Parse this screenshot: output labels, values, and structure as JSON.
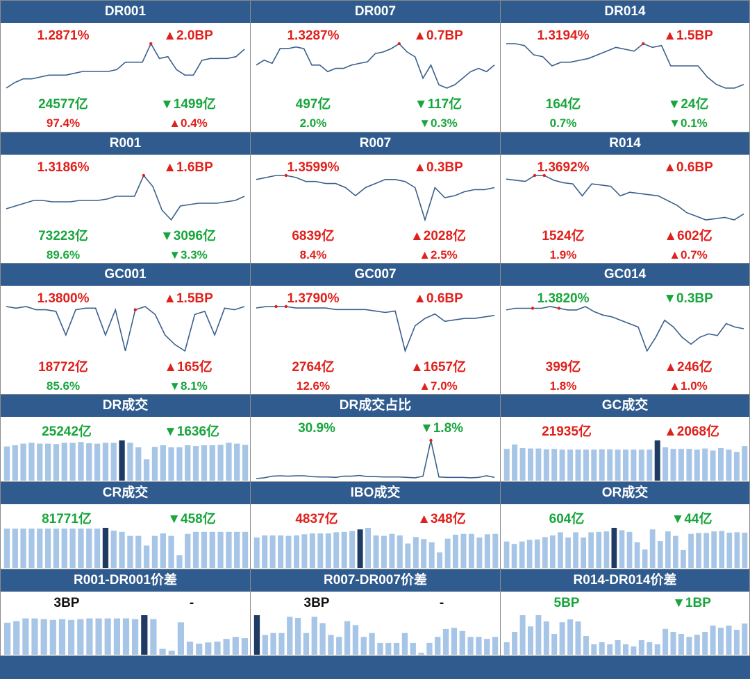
{
  "panels": [
    {
      "title": "DR001",
      "rate": "1.2871%",
      "rate_dir": "up",
      "rate_chg": "▲2.0BP",
      "vol": "24577亿",
      "vol_dir": "down",
      "vol_chg": "▼1499亿",
      "share": "97.4%",
      "share_dir": "up",
      "share_chg": "▲0.4%"
    },
    {
      "title": "DR007",
      "rate": "1.3287%",
      "rate_dir": "up",
      "rate_chg": "▲0.7BP",
      "vol": "497亿",
      "vol_dir": "down",
      "vol_chg": "▼117亿",
      "share": "2.0%",
      "share_dir": "down",
      "share_chg": "▼0.3%"
    },
    {
      "title": "DR014",
      "rate": "1.3194%",
      "rate_dir": "up",
      "rate_chg": "▲1.5BP",
      "vol": "164亿",
      "vol_dir": "down",
      "vol_chg": "▼24亿",
      "share": "0.7%",
      "share_dir": "down",
      "share_chg": "▼0.1%"
    },
    {
      "title": "R001",
      "rate": "1.3186%",
      "rate_dir": "up",
      "rate_chg": "▲1.6BP",
      "vol": "73223亿",
      "vol_dir": "down",
      "vol_chg": "▼3096亿",
      "share": "89.6%",
      "share_dir": "down",
      "share_chg": "▼3.3%"
    },
    {
      "title": "R007",
      "rate": "1.3599%",
      "rate_dir": "up",
      "rate_chg": "▲0.3BP",
      "vol": "6839亿",
      "vol_dir": "up",
      "vol_chg": "▲2028亿",
      "share": "8.4%",
      "share_dir": "up",
      "share_chg": "▲2.5%"
    },
    {
      "title": "R014",
      "rate": "1.3692%",
      "rate_dir": "up",
      "rate_chg": "▲0.6BP",
      "vol": "1524亿",
      "vol_dir": "up",
      "vol_chg": "▲602亿",
      "share": "1.9%",
      "share_dir": "up",
      "share_chg": "▲0.7%"
    },
    {
      "title": "GC001",
      "rate": "1.3800%",
      "rate_dir": "up",
      "rate_chg": "▲1.5BP",
      "vol": "18772亿",
      "vol_dir": "up",
      "vol_chg": "▲165亿",
      "share": "85.6%",
      "share_dir": "down",
      "share_chg": "▼8.1%"
    },
    {
      "title": "GC007",
      "rate": "1.3790%",
      "rate_dir": "up",
      "rate_chg": "▲0.6BP",
      "vol": "2764亿",
      "vol_dir": "up",
      "vol_chg": "▲1657亿",
      "share": "12.6%",
      "share_dir": "up",
      "share_chg": "▲7.0%"
    },
    {
      "title": "GC014",
      "rate": "1.3820%",
      "rate_dir": "down",
      "rate_chg": "▼0.3BP",
      "vol": "399亿",
      "vol_dir": "up",
      "vol_chg": "▲246亿",
      "share": "1.8%",
      "share_dir": "up",
      "share_chg": "▲1.0%"
    }
  ],
  "small_panels": [
    {
      "title": "DR成交",
      "value": "25242亿",
      "value_dir": "down",
      "chg": "▼1636亿",
      "chg_dir": "down"
    },
    {
      "title": "DR成交占比",
      "value": "30.9%",
      "value_dir": "down",
      "chg": "▼1.8%",
      "chg_dir": "down"
    },
    {
      "title": "GC成交",
      "value": "21935亿",
      "value_dir": "up",
      "chg": "▲2068亿",
      "chg_dir": "up"
    },
    {
      "title": "CR成交",
      "value": "81771亿",
      "value_dir": "down",
      "chg": "▼458亿",
      "chg_dir": "down"
    },
    {
      "title": "IBO成交",
      "value": "4837亿",
      "value_dir": "up",
      "chg": "▲348亿",
      "chg_dir": "up"
    },
    {
      "title": "OR成交",
      "value": "604亿",
      "value_dir": "down",
      "chg": "▼44亿",
      "chg_dir": "down"
    },
    {
      "title": "R001-DR001价差",
      "value": "3BP",
      "value_dir": "neutral",
      "chg": "-",
      "chg_dir": "neutral"
    },
    {
      "title": "R007-DR007价差",
      "value": "3BP",
      "value_dir": "neutral",
      "chg": "-",
      "chg_dir": "neutral"
    },
    {
      "title": "R014-DR014价差",
      "value": "5BP",
      "value_dir": "down",
      "chg": "▼1BP",
      "chg_dir": "down"
    }
  ],
  "colors": {
    "header": "#2f5b8f",
    "line": "#3a5f8c",
    "bar": "#a7c5e6",
    "bar_highlight": "#1f3b63",
    "up": "#e0201b",
    "down": "#17a63b",
    "marker": "#e0201b"
  },
  "chart_data": [
    {
      "type": "line",
      "name": "DR001",
      "values": [
        1.05,
        1.08,
        1.1,
        1.1,
        1.11,
        1.12,
        1.12,
        1.12,
        1.13,
        1.14,
        1.14,
        1.14,
        1.14,
        1.15,
        1.19,
        1.19,
        1.19,
        1.29,
        1.21,
        1.22,
        1.15,
        1.12,
        1.12,
        1.2,
        1.21,
        1.21,
        1.21,
        1.22,
        1.26
      ],
      "highlight": [
        17
      ]
    },
    {
      "type": "line",
      "name": "DR007",
      "values": [
        1.2,
        1.23,
        1.21,
        1.3,
        1.3,
        1.31,
        1.3,
        1.2,
        1.2,
        1.16,
        1.18,
        1.18,
        1.2,
        1.21,
        1.22,
        1.27,
        1.28,
        1.3,
        1.33,
        1.28,
        1.25,
        1.12,
        1.2,
        1.08,
        1.06,
        1.08,
        1.12,
        1.16,
        1.18,
        1.16,
        1.2
      ],
      "highlight": [
        18
      ]
    },
    {
      "type": "line",
      "name": "DR014",
      "values": [
        1.32,
        1.32,
        1.31,
        1.26,
        1.25,
        1.2,
        1.22,
        1.22,
        1.23,
        1.24,
        1.26,
        1.28,
        1.3,
        1.29,
        1.28,
        1.32,
        1.3,
        1.31,
        1.2,
        1.2,
        1.2,
        1.2,
        1.14,
        1.1,
        1.08,
        1.08,
        1.1
      ],
      "highlight": [
        15
      ]
    },
    {
      "type": "line",
      "name": "R001",
      "values": [
        1.06,
        1.08,
        1.1,
        1.12,
        1.12,
        1.11,
        1.11,
        1.11,
        1.12,
        1.12,
        1.12,
        1.13,
        1.15,
        1.15,
        1.15,
        1.3,
        1.22,
        1.05,
        0.98,
        1.08,
        1.09,
        1.1,
        1.1,
        1.1,
        1.11,
        1.12,
        1.15
      ],
      "highlight": [
        15
      ]
    },
    {
      "type": "line",
      "name": "R007",
      "values": [
        1.34,
        1.35,
        1.36,
        1.36,
        1.35,
        1.33,
        1.33,
        1.32,
        1.32,
        1.3,
        1.26,
        1.3,
        1.32,
        1.34,
        1.34,
        1.33,
        1.3,
        1.14,
        1.3,
        1.25,
        1.26,
        1.28,
        1.29,
        1.29,
        1.3
      ],
      "highlight": [
        3
      ]
    },
    {
      "type": "line",
      "name": "R014",
      "values": [
        1.34,
        1.33,
        1.32,
        1.37,
        1.37,
        1.33,
        1.31,
        1.3,
        1.2,
        1.3,
        1.29,
        1.28,
        1.2,
        1.23,
        1.22,
        1.21,
        1.2,
        1.16,
        1.12,
        1.06,
        1.03,
        1.0,
        1.01,
        1.02,
        1.0,
        1.05
      ],
      "highlight": [
        3,
        4
      ]
    },
    {
      "type": "line",
      "name": "GC001",
      "values": [
        1.38,
        1.37,
        1.38,
        1.36,
        1.36,
        1.35,
        1.2,
        1.36,
        1.37,
        1.37,
        1.2,
        1.36,
        1.1,
        1.36,
        1.38,
        1.33,
        1.2,
        1.14,
        1.1,
        1.33,
        1.35,
        1.2,
        1.37,
        1.36,
        1.38
      ],
      "highlight": [
        13
      ]
    },
    {
      "type": "line",
      "name": "GC007",
      "values": [
        1.37,
        1.38,
        1.38,
        1.38,
        1.37,
        1.37,
        1.37,
        1.37,
        1.36,
        1.36,
        1.36,
        1.36,
        1.35,
        1.34,
        1.35,
        1.08,
        1.25,
        1.3,
        1.33,
        1.28,
        1.29,
        1.3,
        1.3,
        1.31,
        1.32
      ],
      "highlight": [
        2,
        3
      ]
    },
    {
      "type": "line",
      "name": "GC014",
      "values": [
        1.36,
        1.37,
        1.37,
        1.37,
        1.37,
        1.38,
        1.37,
        1.36,
        1.36,
        1.38,
        1.35,
        1.33,
        1.32,
        1.3,
        1.28,
        1.26,
        1.12,
        1.2,
        1.3,
        1.26,
        1.2,
        1.16,
        1.2,
        1.22,
        1.21,
        1.28,
        1.26,
        1.25
      ],
      "highlight": [
        3,
        6
      ]
    },
    {
      "type": "bar",
      "name": "DR成交",
      "values": [
        0.85,
        0.88,
        0.92,
        0.94,
        0.92,
        0.92,
        0.91,
        0.94,
        0.94,
        0.96,
        0.93,
        0.92,
        0.94,
        0.94,
        1.0,
        0.94,
        0.83,
        0.53,
        0.84,
        0.88,
        0.83,
        0.83,
        0.88,
        0.86,
        0.88,
        0.88,
        0.89,
        0.94,
        0.92,
        0.89
      ],
      "highlight": [
        14
      ]
    },
    {
      "type": "line",
      "name": "DR成交占比",
      "values": [
        0.03,
        0.05,
        0.09,
        0.1,
        0.09,
        0.1,
        0.1,
        0.08,
        0.07,
        0.07,
        0.06,
        0.09,
        0.09,
        0.11,
        0.08,
        0.08,
        0.07,
        0.07,
        0.07,
        0.06,
        0.05,
        0.09,
        1.0,
        0.07,
        0.06,
        0.06,
        0.06,
        0.05,
        0.06,
        0.1,
        0.06
      ],
      "highlight": [
        22
      ]
    },
    {
      "type": "bar",
      "name": "GC成交",
      "values": [
        0.79,
        0.9,
        0.81,
        0.8,
        0.8,
        0.78,
        0.79,
        0.77,
        0.77,
        0.77,
        0.77,
        0.77,
        0.78,
        0.78,
        0.77,
        0.77,
        0.77,
        0.77,
        0.77,
        1.0,
        0.83,
        0.79,
        0.79,
        0.79,
        0.77,
        0.8,
        0.75,
        0.81,
        0.77,
        0.71,
        0.86
      ],
      "highlight": [
        19
      ]
    },
    {
      "type": "bar",
      "name": "CR成交",
      "values": [
        0.98,
        0.98,
        0.98,
        0.98,
        0.98,
        0.98,
        0.98,
        0.98,
        0.98,
        0.98,
        0.98,
        0.98,
        1.0,
        0.93,
        0.9,
        0.8,
        0.8,
        0.56,
        0.8,
        0.86,
        0.8,
        0.32,
        0.85,
        0.9,
        0.9,
        0.9,
        0.9,
        0.9,
        0.9,
        0.9
      ],
      "highlight": [
        12
      ]
    },
    {
      "type": "bar",
      "name": "IBO成交",
      "values": [
        0.76,
        0.81,
        0.81,
        0.81,
        0.8,
        0.81,
        0.84,
        0.86,
        0.86,
        0.86,
        0.89,
        0.9,
        0.92,
        0.96,
        1.0,
        0.81,
        0.8,
        0.85,
        0.81,
        0.61,
        0.77,
        0.72,
        0.64,
        0.39,
        0.73,
        0.83,
        0.85,
        0.85,
        0.76,
        0.84,
        0.85
      ],
      "highlight": [
        13
      ]
    },
    {
      "type": "bar",
      "name": "OR成交",
      "values": [
        0.66,
        0.6,
        0.66,
        0.7,
        0.71,
        0.77,
        0.81,
        0.89,
        0.76,
        0.89,
        0.76,
        0.89,
        0.9,
        0.91,
        1.0,
        0.94,
        0.9,
        0.64,
        0.46,
        0.96,
        0.67,
        0.91,
        0.8,
        0.45,
        0.85,
        0.87,
        0.87,
        0.91,
        0.92,
        0.88,
        0.89,
        0.88
      ],
      "highlight": [
        14
      ]
    },
    {
      "type": "bar",
      "name": "R001-DR001价差",
      "values": [
        0.81,
        0.85,
        0.92,
        0.92,
        0.9,
        0.88,
        0.9,
        0.88,
        0.9,
        0.92,
        0.92,
        0.92,
        0.92,
        0.92,
        0.9,
        1.0,
        0.9,
        0.15,
        0.1,
        0.82,
        0.33,
        0.28,
        0.31,
        0.33,
        0.4,
        0.45,
        0.42
      ],
      "highlight": [
        15
      ]
    },
    {
      "type": "bar",
      "name": "R007-DR007价差",
      "values": [
        1.0,
        0.5,
        0.55,
        0.55,
        0.96,
        0.93,
        0.55,
        0.96,
        0.8,
        0.5,
        0.45,
        0.85,
        0.75,
        0.45,
        0.55,
        0.3,
        0.3,
        0.3,
        0.55,
        0.3,
        0.05,
        0.3,
        0.45,
        0.65,
        0.68,
        0.6,
        0.45,
        0.45,
        0.4,
        0.45
      ],
      "highlight": [
        0
      ]
    },
    {
      "type": "bar",
      "name": "R014-DR014价差",
      "values": [
        0.3,
        0.55,
        0.95,
        0.68,
        0.95,
        0.8,
        0.5,
        0.78,
        0.85,
        0.8,
        0.45,
        0.25,
        0.3,
        0.25,
        0.35,
        0.25,
        0.2,
        0.35,
        0.3,
        0.25,
        0.62,
        0.55,
        0.5,
        0.43,
        0.48,
        0.55,
        0.7,
        0.65,
        0.7,
        0.6,
        0.75
      ]
    }
  ]
}
